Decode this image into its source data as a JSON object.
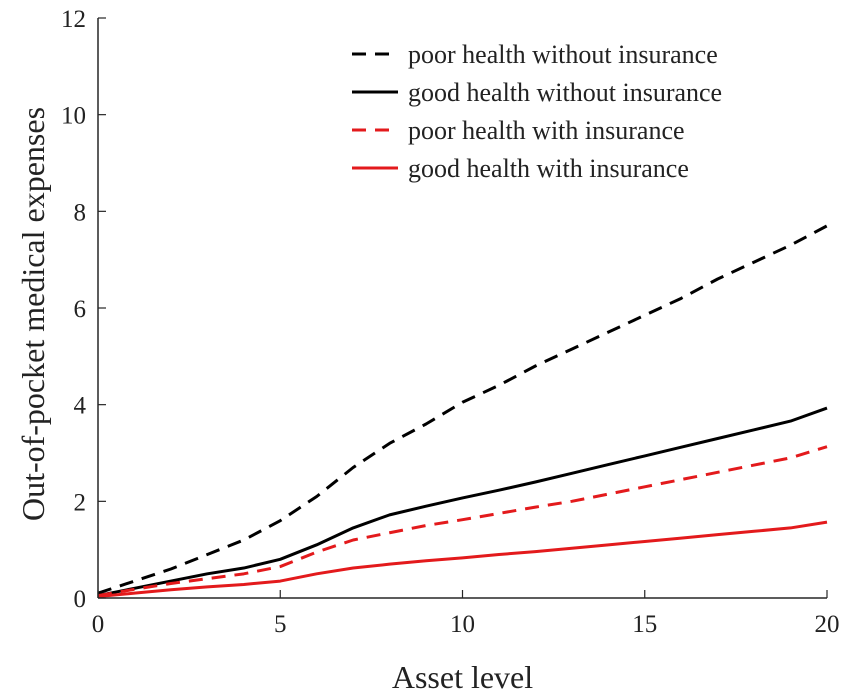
{
  "chart_data": {
    "type": "line",
    "xlabel": "Asset level",
    "ylabel": "Out-of-pocket medical expenses",
    "xlim": [
      0,
      20
    ],
    "ylim": [
      0,
      12
    ],
    "xticks": [
      0,
      5,
      10,
      15,
      20
    ],
    "yticks": [
      0,
      2,
      4,
      6,
      8,
      10,
      12
    ],
    "grid": false,
    "legend_position": "top-right",
    "series": [
      {
        "name": "poor health without insurance",
        "color": "#000000",
        "dash": "dashed",
        "x": [
          0,
          1,
          2,
          3,
          4,
          5,
          6,
          7,
          8,
          9,
          10,
          11,
          12,
          13,
          14,
          15,
          16,
          17,
          18,
          19,
          20
        ],
        "y": [
          0.1,
          0.35,
          0.6,
          0.9,
          1.2,
          1.6,
          2.1,
          2.7,
          3.2,
          3.6,
          4.05,
          4.4,
          4.8,
          5.15,
          5.5,
          5.85,
          6.2,
          6.6,
          6.95,
          7.3,
          7.7
        ]
      },
      {
        "name": "good health without insurance",
        "color": "#000000",
        "dash": "solid",
        "x": [
          0,
          1,
          2,
          3,
          4,
          5,
          6,
          7,
          8,
          9,
          10,
          11,
          12,
          13,
          14,
          15,
          16,
          17,
          18,
          19,
          20
        ],
        "y": [
          0.05,
          0.2,
          0.35,
          0.5,
          0.62,
          0.8,
          1.1,
          1.45,
          1.72,
          1.9,
          2.07,
          2.23,
          2.4,
          2.58,
          2.76,
          2.94,
          3.12,
          3.3,
          3.48,
          3.66,
          3.93
        ]
      },
      {
        "name": "poor health with insurance",
        "color": "#e31a1c",
        "dash": "dashed",
        "x": [
          0,
          1,
          2,
          3,
          4,
          5,
          6,
          7,
          8,
          9,
          10,
          11,
          12,
          13,
          14,
          15,
          16,
          17,
          18,
          19,
          20
        ],
        "y": [
          0.05,
          0.18,
          0.3,
          0.4,
          0.5,
          0.65,
          0.95,
          1.2,
          1.35,
          1.5,
          1.62,
          1.75,
          1.88,
          2.0,
          2.15,
          2.3,
          2.45,
          2.6,
          2.75,
          2.9,
          3.13
        ]
      },
      {
        "name": "good health with insurance",
        "color": "#e31a1c",
        "dash": "solid",
        "x": [
          0,
          1,
          2,
          3,
          4,
          5,
          6,
          7,
          8,
          9,
          10,
          11,
          12,
          13,
          14,
          15,
          16,
          17,
          18,
          19,
          20
        ],
        "y": [
          0.03,
          0.1,
          0.17,
          0.23,
          0.28,
          0.35,
          0.5,
          0.62,
          0.7,
          0.77,
          0.83,
          0.9,
          0.96,
          1.03,
          1.1,
          1.17,
          1.24,
          1.31,
          1.38,
          1.45,
          1.57
        ]
      }
    ]
  }
}
